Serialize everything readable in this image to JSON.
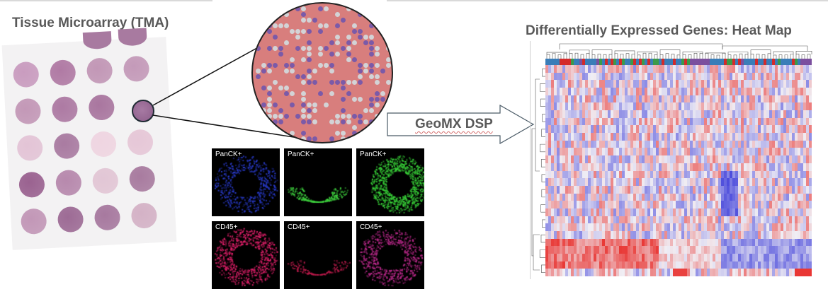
{
  "tma": {
    "title": "Tissue Microarray (TMA)",
    "rows": 5,
    "cols": 4,
    "core_colors": [
      [
        "#c99cbf",
        "#b07aa4",
        "#c297b6",
        "#c49ab9"
      ],
      [
        "#c398b7",
        "#ad7aa3",
        "#a9769f",
        "#a0729b"
      ],
      [
        "#e3c4d6",
        "#a97ba1",
        "#efd5e1",
        "#e6c7d7"
      ],
      [
        "#9a6290",
        "#b789ad",
        "#e2c6d5",
        "#a87b9f"
      ],
      [
        "#c297b7",
        "#9d6b95",
        "#a7799f",
        "#d4b2c6"
      ]
    ],
    "highlighted_core": {
      "row": 2,
      "col": 4
    }
  },
  "zoom_view": {
    "cell_colors": {
      "tumor": "#d87e7d",
      "stroma": "#d3d3d6",
      "immune": "#7b5aa8"
    }
  },
  "fluorescence": {
    "panels": [
      {
        "label": "PanCK+",
        "color": "#2a3ccf"
      },
      {
        "label": "PanCK+",
        "color": "#3fd23f"
      },
      {
        "label": "PanCK+",
        "color": "#39d339"
      },
      {
        "label": "CD45+",
        "color": "#e0206a"
      },
      {
        "label": "CD45+",
        "color": "#b81a4a"
      },
      {
        "label": "CD45+",
        "color": "#c02a8f"
      }
    ]
  },
  "arrow": {
    "label": "GeoMX DSP"
  },
  "heatmap": {
    "title": "Differentially Expressed Genes: Heat Map",
    "colorbar_palette": [
      "#3a7db8",
      "#d42a2a",
      "#3c9a4a",
      "#7b4f9e"
    ],
    "scale_colors": {
      "low": "#3b3bd9",
      "mid": "#f0eef4",
      "high": "#e8231f"
    },
    "n_rows": 28,
    "n_cols": 94
  }
}
